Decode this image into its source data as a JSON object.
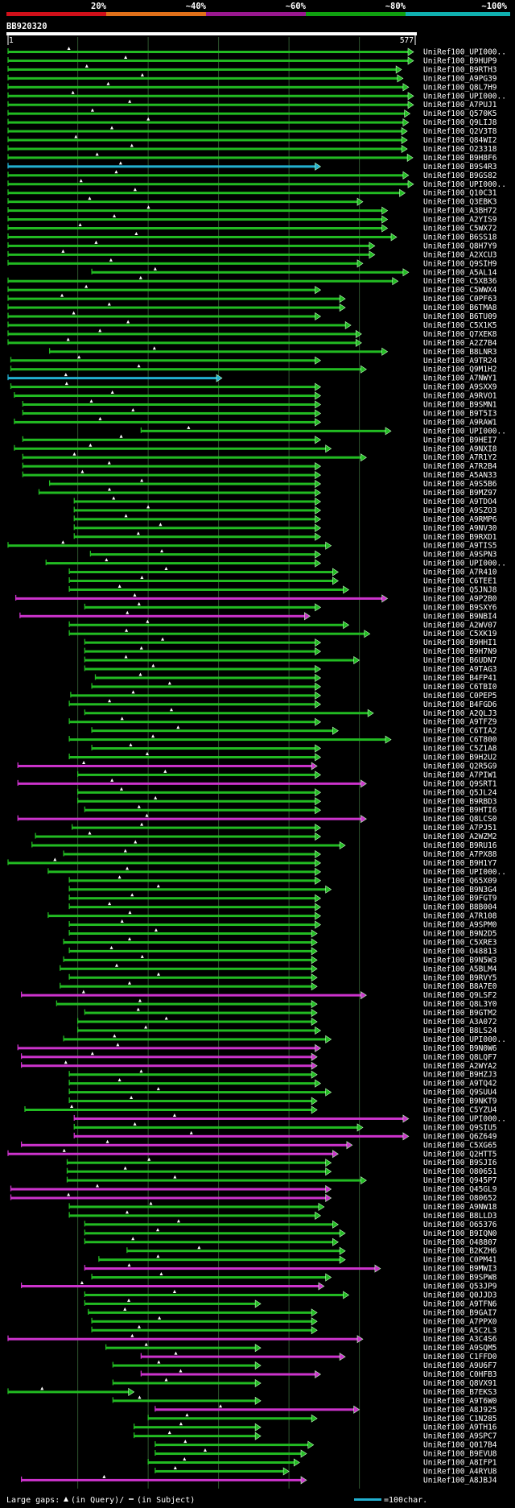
{
  "header": {
    "percent_labels": [
      "20%",
      "~40%",
      "~60%",
      "~80%",
      "~100%"
    ],
    "percent_colors": [
      "#d0101a",
      "#e0701a",
      "#9a1890",
      "#10a010",
      "#10b0b0"
    ],
    "query_name": "BB920320",
    "ruler_start": "1",
    "ruler_end": "577"
  },
  "colors": {
    "green": "#22bb22",
    "magenta": "#cc33cc",
    "cyan": "#22b0d0",
    "grid": "#2e552e"
  },
  "footer": {
    "large_gaps_label": "Large gaps:",
    "gap_legend_text": "(in Query)/",
    "gap_legend_text2": "(in Subject)",
    "scale_text": "=100char."
  },
  "hits": [
    {
      "label": "UniRef100_UPI000..",
      "s": 1,
      "e": 577,
      "c": "g"
    },
    {
      "label": "UniRef100_B9HUP9",
      "s": 1,
      "e": 577,
      "c": "g"
    },
    {
      "label": "UniRef100_B9RTH3",
      "s": 1,
      "e": 560,
      "c": "g"
    },
    {
      "label": "UniRef100_A9PG39",
      "s": 1,
      "e": 562,
      "c": "g"
    },
    {
      "label": "UniRef100_Q8L7H9",
      "s": 1,
      "e": 570,
      "c": "g"
    },
    {
      "label": "UniRef100_UPI000..",
      "s": 1,
      "e": 577,
      "c": "g"
    },
    {
      "label": "UniRef100_A7PUJ1",
      "s": 1,
      "e": 577,
      "c": "g"
    },
    {
      "label": "UniRef100_Q570K5",
      "s": 1,
      "e": 572,
      "c": "g"
    },
    {
      "label": "UniRef100_Q9LIJ8",
      "s": 1,
      "e": 570,
      "c": "g"
    },
    {
      "label": "UniRef100_Q2V3T8",
      "s": 1,
      "e": 568,
      "c": "g"
    },
    {
      "label": "UniRef100_Q84WI2",
      "s": 1,
      "e": 568,
      "c": "g"
    },
    {
      "label": "UniRef100_O23318",
      "s": 1,
      "e": 568,
      "c": "g"
    },
    {
      "label": "UniRef100_B9H8F6",
      "s": 1,
      "e": 576,
      "c": "g"
    },
    {
      "label": "UniRef100_B9S4R3",
      "s": 1,
      "e": 445,
      "c": "c"
    },
    {
      "label": "UniRef100_B9GS82",
      "s": 1,
      "e": 570,
      "c": "g"
    },
    {
      "label": "UniRef100_UPI000..",
      "s": 1,
      "e": 577,
      "c": "g"
    },
    {
      "label": "UniRef100_Q10C31",
      "s": 1,
      "e": 565,
      "c": "g"
    },
    {
      "label": "UniRef100_Q3EBK3",
      "s": 1,
      "e": 505,
      "c": "g"
    },
    {
      "label": "UniRef100_A3BH72",
      "s": 1,
      "e": 540,
      "c": "g"
    },
    {
      "label": "UniRef100_A2YIS9",
      "s": 1,
      "e": 540,
      "c": "g"
    },
    {
      "label": "UniRef100_C5WX72",
      "s": 1,
      "e": 540,
      "c": "g"
    },
    {
      "label": "UniRef100_B6SS18",
      "s": 1,
      "e": 553,
      "c": "g"
    },
    {
      "label": "UniRef100_Q8H7Y9",
      "s": 1,
      "e": 522,
      "c": "g"
    },
    {
      "label": "UniRef100_A2XCU3",
      "s": 1,
      "e": 522,
      "c": "g"
    },
    {
      "label": "UniRef100_Q9SIH9",
      "s": 1,
      "e": 505,
      "c": "g"
    },
    {
      "label": "UniRef100_A5AL14",
      "s": 120,
      "e": 570,
      "c": "g"
    },
    {
      "label": "UniRef100_C5XB36",
      "s": 1,
      "e": 555,
      "c": "g"
    },
    {
      "label": "UniRef100_C5WWX4",
      "s": 1,
      "e": 445,
      "c": "g"
    },
    {
      "label": "UniRef100_C0PF63",
      "s": 1,
      "e": 480,
      "c": "g"
    },
    {
      "label": "UniRef100_B6TMA8",
      "s": 1,
      "e": 480,
      "c": "g"
    },
    {
      "label": "UniRef100_B6TU09",
      "s": 1,
      "e": 445,
      "c": "g"
    },
    {
      "label": "UniRef100_C5X1K5",
      "s": 1,
      "e": 488,
      "c": "g"
    },
    {
      "label": "UniRef100_Q7XEK8",
      "s": 1,
      "e": 503,
      "c": "g"
    },
    {
      "label": "UniRef100_A2Z7B4",
      "s": 1,
      "e": 503,
      "c": "g"
    },
    {
      "label": "UniRef100_B8LNR3",
      "s": 60,
      "e": 540,
      "c": "g"
    },
    {
      "label": "UniRef100_A9TR24",
      "s": 5,
      "e": 445,
      "c": "g"
    },
    {
      "label": "UniRef100_Q9M1H2",
      "s": 5,
      "e": 510,
      "c": "g"
    },
    {
      "label": "UniRef100_A7NWY1",
      "s": 1,
      "e": 305,
      "c": "c"
    },
    {
      "label": "UniRef100_A9SXX9",
      "s": 5,
      "e": 445,
      "c": "g"
    },
    {
      "label": "UniRef100_A9RVO1",
      "s": 10,
      "e": 445,
      "c": "g"
    },
    {
      "label": "UniRef100_B9SMN1",
      "s": 22,
      "e": 445,
      "c": "g"
    },
    {
      "label": "UniRef100_B9T5I3",
      "s": 22,
      "e": 445,
      "c": "g"
    },
    {
      "label": "UniRef100_A9RAW1",
      "s": 10,
      "e": 445,
      "c": "g"
    },
    {
      "label": "UniRef100_UPI000..",
      "s": 190,
      "e": 545,
      "c": "g"
    },
    {
      "label": "UniRef100_B9HEI7",
      "s": 22,
      "e": 445,
      "c": "g"
    },
    {
      "label": "UniRef100_A9NXI8",
      "s": 10,
      "e": 460,
      "c": "g"
    },
    {
      "label": "UniRef100_A7R1Y2",
      "s": 22,
      "e": 510,
      "c": "g"
    },
    {
      "label": "UniRef100_A7R2B4",
      "s": 22,
      "e": 445,
      "c": "g"
    },
    {
      "label": "UniRef100_A5AN33",
      "s": 22,
      "e": 445,
      "c": "g"
    },
    {
      "label": "UniRef100_A9S5B6",
      "s": 60,
      "e": 445,
      "c": "g"
    },
    {
      "label": "UniRef100_B9MZ97",
      "s": 45,
      "e": 445,
      "c": "g"
    },
    {
      "label": "UniRef100_A9TDO4",
      "s": 95,
      "e": 445,
      "c": "g"
    },
    {
      "label": "UniRef100_A9SZO3",
      "s": 95,
      "e": 445,
      "c": "g"
    },
    {
      "label": "UniRef100_A9RMP6",
      "s": 95,
      "e": 445,
      "c": "g"
    },
    {
      "label": "UniRef100_A9NV30",
      "s": 95,
      "e": 445,
      "c": "g"
    },
    {
      "label": "UniRef100_B9RXD1",
      "s": 95,
      "e": 445,
      "c": "g"
    },
    {
      "label": "UniRef100_A9TIS5",
      "s": 1,
      "e": 460,
      "c": "g"
    },
    {
      "label": "UniRef100_A9SPN3",
      "s": 118,
      "e": 445,
      "c": "g"
    },
    {
      "label": "UniRef100_UPI000..",
      "s": 55,
      "e": 445,
      "c": "g"
    },
    {
      "label": "UniRef100_A7R410",
      "s": 88,
      "e": 470,
      "c": "g"
    },
    {
      "label": "UniRef100_C6TEE1",
      "s": 88,
      "e": 470,
      "c": "g"
    },
    {
      "label": "UniRef100_Q5JNJ8",
      "s": 88,
      "e": 485,
      "c": "g"
    },
    {
      "label": "UniRef100_A9P2B0",
      "s": 12,
      "e": 540,
      "c": "m"
    },
    {
      "label": "UniRef100_B9SXY6",
      "s": 110,
      "e": 445,
      "c": "g"
    },
    {
      "label": "UniRef100_B9NBI4",
      "s": 18,
      "e": 430,
      "c": "m"
    },
    {
      "label": "UniRef100_A2WV07",
      "s": 88,
      "e": 485,
      "c": "g"
    },
    {
      "label": "UniRef100_C5XK19",
      "s": 88,
      "e": 515,
      "c": "g"
    },
    {
      "label": "UniRef100_B9HHI1",
      "s": 110,
      "e": 445,
      "c": "g"
    },
    {
      "label": "UniRef100_B9H7N9",
      "s": 110,
      "e": 445,
      "c": "g"
    },
    {
      "label": "UniRef100_B6UDN7",
      "s": 110,
      "e": 500,
      "c": "g"
    },
    {
      "label": "UniRef100_A9TAG3",
      "s": 110,
      "e": 445,
      "c": "g"
    },
    {
      "label": "UniRef100_B4FP41",
      "s": 125,
      "e": 445,
      "c": "g"
    },
    {
      "label": "UniRef100_C6TBI0",
      "s": 120,
      "e": 445,
      "c": "g"
    },
    {
      "label": "UniRef100_C0PEP5",
      "s": 90,
      "e": 445,
      "c": "g"
    },
    {
      "label": "UniRef100_B4FGD6",
      "s": 88,
      "e": 445,
      "c": "g"
    },
    {
      "label": "UniRef100_A2QLJ3",
      "s": 110,
      "e": 520,
      "c": "g"
    },
    {
      "label": "UniRef100_A9TFZ9",
      "s": 88,
      "e": 445,
      "c": "g"
    },
    {
      "label": "UniRef100_C6TIA2",
      "s": 120,
      "e": 470,
      "c": "g"
    },
    {
      "label": "UniRef100_C6T800",
      "s": 88,
      "e": 545,
      "c": "g"
    },
    {
      "label": "UniRef100_C5Z1A8",
      "s": 120,
      "e": 445,
      "c": "g"
    },
    {
      "label": "UniRef100_B9H2U2",
      "s": 88,
      "e": 445,
      "c": "g"
    },
    {
      "label": "UniRef100_Q2R5G9",
      "s": 15,
      "e": 440,
      "c": "m"
    },
    {
      "label": "UniRef100_A7PIW1",
      "s": 100,
      "e": 445,
      "c": "g"
    },
    {
      "label": "UniRef100_Q9SRT1",
      "s": 15,
      "e": 510,
      "c": "m"
    },
    {
      "label": "UniRef100_Q5JL24",
      "s": 100,
      "e": 445,
      "c": "g"
    },
    {
      "label": "UniRef100_B9RBD3",
      "s": 100,
      "e": 445,
      "c": "g"
    },
    {
      "label": "UniRef100_B9HTI6",
      "s": 110,
      "e": 445,
      "c": "g"
    },
    {
      "label": "UniRef100_Q8LCS0",
      "s": 15,
      "e": 510,
      "c": "m"
    },
    {
      "label": "UniRef100_A7PJ51",
      "s": 92,
      "e": 445,
      "c": "g"
    },
    {
      "label": "UniRef100_A2WZM2",
      "s": 40,
      "e": 445,
      "c": "g"
    },
    {
      "label": "UniRef100_B9RU16",
      "s": 35,
      "e": 480,
      "c": "g"
    },
    {
      "label": "UniRef100_A7PX88",
      "s": 80,
      "e": 445,
      "c": "g"
    },
    {
      "label": "UniRef100_B9H1Y7",
      "s": 1,
      "e": 445,
      "c": "g"
    },
    {
      "label": "UniRef100_UPI000..",
      "s": 58,
      "e": 445,
      "c": "g"
    },
    {
      "label": "UniRef100_Q65X09",
      "s": 88,
      "e": 445,
      "c": "g"
    },
    {
      "label": "UniRef100_B9N3G4",
      "s": 88,
      "e": 460,
      "c": "g"
    },
    {
      "label": "UniRef100_B9FGT9",
      "s": 88,
      "e": 445,
      "c": "g"
    },
    {
      "label": "UniRef100_B8B004",
      "s": 88,
      "e": 445,
      "c": "g"
    },
    {
      "label": "UniRef100_A7R108",
      "s": 58,
      "e": 445,
      "c": "g"
    },
    {
      "label": "UniRef100_A9SPM0",
      "s": 88,
      "e": 445,
      "c": "g"
    },
    {
      "label": "UniRef100_B9N2D5",
      "s": 88,
      "e": 440,
      "c": "g"
    },
    {
      "label": "UniRef100_C5XRE3",
      "s": 80,
      "e": 440,
      "c": "g"
    },
    {
      "label": "UniRef100_O48813",
      "s": 88,
      "e": 440,
      "c": "g"
    },
    {
      "label": "UniRef100_B9N5W3",
      "s": 80,
      "e": 440,
      "c": "g"
    },
    {
      "label": "UniRef100_A5BLM4",
      "s": 75,
      "e": 440,
      "c": "g"
    },
    {
      "label": "UniRef100_B9RVY5",
      "s": 88,
      "e": 440,
      "c": "g"
    },
    {
      "label": "UniRef100_B8A7E0",
      "s": 75,
      "e": 440,
      "c": "g"
    },
    {
      "label": "UniRef100_Q9LSF2",
      "s": 20,
      "e": 510,
      "c": "m"
    },
    {
      "label": "UniRef100_Q8L3Y0",
      "s": 70,
      "e": 440,
      "c": "g"
    },
    {
      "label": "UniRef100_B9GTM2",
      "s": 110,
      "e": 440,
      "c": "g"
    },
    {
      "label": "UniRef100_A3A072",
      "s": 100,
      "e": 440,
      "c": "g"
    },
    {
      "label": "UniRef100_B8LS24",
      "s": 100,
      "e": 445,
      "c": "g"
    },
    {
      "label": "UniRef100_UPI000..",
      "s": 80,
      "e": 460,
      "c": "g"
    },
    {
      "label": "UniRef100_B9N0W6",
      "s": 15,
      "e": 445,
      "c": "m"
    },
    {
      "label": "UniRef100_Q8LQF7",
      "s": 20,
      "e": 440,
      "c": "m"
    },
    {
      "label": "UniRef100_A2WYA2",
      "s": 20,
      "e": 440,
      "c": "m"
    },
    {
      "label": "UniRef100_B9HZJ3",
      "s": 88,
      "e": 440,
      "c": "g"
    },
    {
      "label": "UniRef100_A9TQ42",
      "s": 88,
      "e": 445,
      "c": "g"
    },
    {
      "label": "UniRef100_Q9SUU4",
      "s": 88,
      "e": 460,
      "c": "g"
    },
    {
      "label": "UniRef100_B9NKT9",
      "s": 88,
      "e": 440,
      "c": "g"
    },
    {
      "label": "UniRef100_C5YZU4",
      "s": 25,
      "e": 440,
      "c": "g"
    },
    {
      "label": "UniRef100_UPI000..",
      "s": 95,
      "e": 570,
      "c": "m"
    },
    {
      "label": "UniRef100_Q9SIU5",
      "s": 95,
      "e": 505,
      "c": "g"
    },
    {
      "label": "UniRef100_Q6Z649",
      "s": 95,
      "e": 570,
      "c": "m"
    },
    {
      "label": "UniRef100_C5XG65",
      "s": 20,
      "e": 490,
      "c": "m"
    },
    {
      "label": "UniRef100_Q2HTT5",
      "s": 1,
      "e": 470,
      "c": "m"
    },
    {
      "label": "UniRef100_B9SJI6",
      "s": 85,
      "e": 460,
      "c": "g"
    },
    {
      "label": "UniRef100_O80651",
      "s": 85,
      "e": 460,
      "c": "g"
    },
    {
      "label": "UniRef100_Q945P7",
      "s": 85,
      "e": 510,
      "c": "g"
    },
    {
      "label": "UniRef100_Q45GL9",
      "s": 5,
      "e": 460,
      "c": "m"
    },
    {
      "label": "UniRef100_O80652",
      "s": 5,
      "e": 460,
      "c": "m"
    },
    {
      "label": "UniRef100_A9NW18",
      "s": 88,
      "e": 450,
      "c": "g"
    },
    {
      "label": "UniRef100_B8LLD3",
      "s": 88,
      "e": 445,
      "c": "g"
    },
    {
      "label": "UniRef100_O65376",
      "s": 110,
      "e": 470,
      "c": "g"
    },
    {
      "label": "UniRef100_B9IQN0",
      "s": 110,
      "e": 480,
      "c": "g"
    },
    {
      "label": "UniRef100_O48807",
      "s": 110,
      "e": 470,
      "c": "g"
    },
    {
      "label": "UniRef100_B2KZH6",
      "s": 170,
      "e": 480,
      "c": "g"
    },
    {
      "label": "UniRef100_C0PM41",
      "s": 130,
      "e": 480,
      "c": "g"
    },
    {
      "label": "UniRef100_B9MWI3",
      "s": 110,
      "e": 530,
      "c": "m"
    },
    {
      "label": "UniRef100_B9SPW8",
      "s": 120,
      "e": 460,
      "c": "g"
    },
    {
      "label": "UniRef100_Q53JP9",
      "s": 20,
      "e": 450,
      "c": "m"
    },
    {
      "label": "UniRef100_Q0JJD3",
      "s": 110,
      "e": 485,
      "c": "g"
    },
    {
      "label": "UniRef100_A9TFN6",
      "s": 110,
      "e": 360,
      "c": "g"
    },
    {
      "label": "UniRef100_B9GAI7",
      "s": 115,
      "e": 440,
      "c": "g"
    },
    {
      "label": "UniRef100_A7PPX0",
      "s": 120,
      "e": 440,
      "c": "g"
    },
    {
      "label": "UniRef100_A5C2L3",
      "s": 120,
      "e": 440,
      "c": "g"
    },
    {
      "label": "UniRef100_A3C4S6",
      "s": 1,
      "e": 505,
      "c": "m"
    },
    {
      "label": "UniRef100_A9SQM5",
      "s": 140,
      "e": 360,
      "c": "g"
    },
    {
      "label": "UniRef100_C1FFD0",
      "s": 190,
      "e": 480,
      "c": "m"
    },
    {
      "label": "UniRef100_A9U6F7",
      "s": 150,
      "e": 360,
      "c": "g"
    },
    {
      "label": "UniRef100_C0HFB3",
      "s": 190,
      "e": 445,
      "c": "m"
    },
    {
      "label": "UniRef100_Q8VX91",
      "s": 150,
      "e": 360,
      "c": "g"
    },
    {
      "label": "UniRef100_B7EKS3",
      "s": 1,
      "e": 180,
      "c": "g"
    },
    {
      "label": "UniRef100_A9T6W0",
      "s": 150,
      "e": 360,
      "c": "g"
    },
    {
      "label": "UniRef100_A8J925",
      "s": 210,
      "e": 500,
      "c": "m"
    },
    {
      "label": "UniRef100_C1N285",
      "s": 200,
      "e": 440,
      "c": "g"
    },
    {
      "label": "UniRef100_A9TH16",
      "s": 180,
      "e": 360,
      "c": "g"
    },
    {
      "label": "UniRef100_A9SPC7",
      "s": 180,
      "e": 360,
      "c": "g"
    },
    {
      "label": "UniRef100_Q017B4",
      "s": 210,
      "e": 435,
      "c": "g"
    },
    {
      "label": "UniRef100_B9EVU8",
      "s": 210,
      "e": 425,
      "c": "g"
    },
    {
      "label": "UniRef100_A8IFP1",
      "s": 200,
      "e": 415,
      "c": "g"
    },
    {
      "label": "UniRef100_A4RYU8",
      "s": 210,
      "e": 400,
      "c": "g"
    },
    {
      "label": "UniRef100_A8JBJ4",
      "s": 20,
      "e": 425,
      "c": "m"
    }
  ]
}
